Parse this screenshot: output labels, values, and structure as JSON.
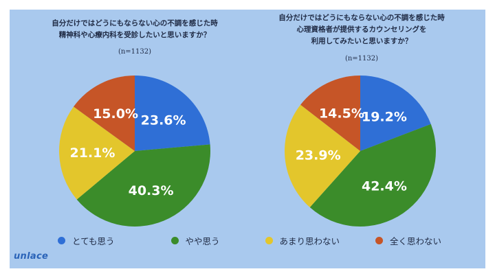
{
  "colors": {
    "background": "#a9c9ee",
    "label": "#ffffff",
    "title": "#1f2a44"
  },
  "legend": [
    {
      "label": "とても思う",
      "color": "#2f6fd6"
    },
    {
      "label": "やや思う",
      "color": "#3b8c2a"
    },
    {
      "label": "あまり思わない",
      "color": "#e3c62c"
    },
    {
      "label": "全く思わない",
      "color": "#c65527"
    }
  ],
  "chart_data": [
    {
      "type": "pie",
      "title": "自分だけではどうにもならない心の不調を感じた時\n精神科や心療内科を受診したいと思いますか？",
      "note": "(n=1132)",
      "categories": [
        "とても思う",
        "やや思う",
        "あまり思わない",
        "全く思わない"
      ],
      "values": [
        23.6,
        40.3,
        21.1,
        15.0
      ],
      "value_labels": [
        "23.6%",
        "40.3%",
        "21.1%",
        "15.0%"
      ]
    },
    {
      "type": "pie",
      "title": "自分だけではどうにもならない心の不調を感じた時\n心理資格者が提供するカウンセリングを\n利用してみたいと思いますか？",
      "note": "(n=1132)",
      "categories": [
        "とても思う",
        "やや思う",
        "あまり思わない",
        "全く思わない"
      ],
      "values": [
        19.2,
        42.4,
        23.9,
        14.5
      ],
      "value_labels": [
        "19.2%",
        "42.4%",
        "23.9%",
        "14.5%"
      ]
    }
  ],
  "logo": "unlace"
}
